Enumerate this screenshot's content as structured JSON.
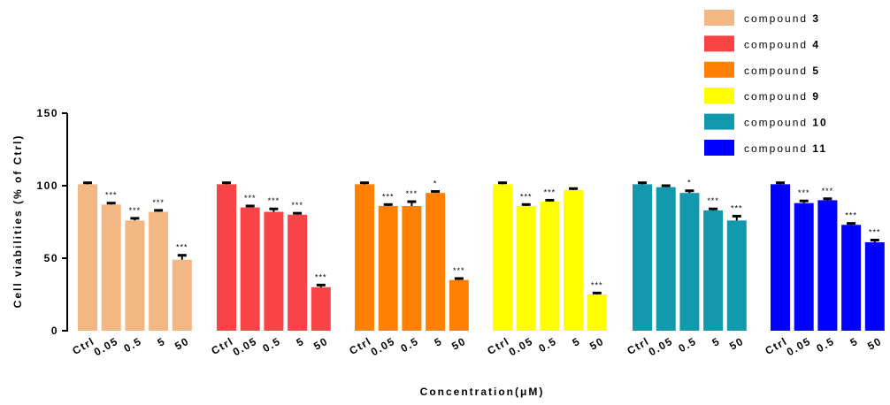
{
  "chart_data": {
    "type": "bar",
    "xlabel": "Concentration(μM)",
    "ylabel": "Cell viabilities (% of Ctrl)",
    "ylim": [
      0,
      150
    ],
    "yticks": [
      0,
      50,
      100,
      150
    ],
    "categories": [
      "Ctrl",
      "0.05",
      "0.5",
      "5",
      "50"
    ],
    "legend_position": "top-right",
    "series": [
      {
        "name_prefix": "compound",
        "name_number": "3",
        "color": "#F3B784",
        "values": [
          101,
          87,
          76,
          82,
          49
        ],
        "errors": [
          1,
          1,
          1.5,
          1,
          3
        ],
        "significance": [
          "",
          "***",
          "***",
          "***",
          "***"
        ]
      },
      {
        "name_prefix": "compound",
        "name_number": "4",
        "color": "#F94447",
        "values": [
          101,
          85,
          82,
          80,
          30
        ],
        "errors": [
          1,
          1,
          2,
          1,
          1.5
        ],
        "significance": [
          "",
          "***",
          "***",
          "***",
          "***"
        ]
      },
      {
        "name_prefix": "compound",
        "name_number": "5",
        "color": "#FF8103",
        "values": [
          101,
          86,
          86,
          95,
          35
        ],
        "errors": [
          1,
          1,
          3,
          1,
          1
        ],
        "significance": [
          "",
          "***",
          "***",
          "*",
          "***"
        ]
      },
      {
        "name_prefix": "compound",
        "name_number": "9",
        "color": "#FFFF00",
        "values": [
          101,
          86,
          89,
          97,
          25
        ],
        "errors": [
          1,
          1,
          1,
          1,
          1
        ],
        "significance": [
          "",
          "***",
          "***",
          "",
          "***"
        ]
      },
      {
        "name_prefix": "compound",
        "name_number": "10",
        "color": "#1399AE",
        "values": [
          101,
          99,
          95,
          83,
          76
        ],
        "errors": [
          1,
          1,
          1.5,
          1,
          3
        ],
        "significance": [
          "",
          "",
          "*",
          "***",
          "***"
        ]
      },
      {
        "name_prefix": "compound",
        "name_number": "11",
        "color": "#0000FF",
        "values": [
          101,
          88,
          90,
          73,
          61
        ],
        "errors": [
          1,
          1.5,
          1,
          1,
          1.5
        ],
        "significance": [
          "",
          "***",
          "***",
          "***",
          "***"
        ]
      }
    ]
  }
}
